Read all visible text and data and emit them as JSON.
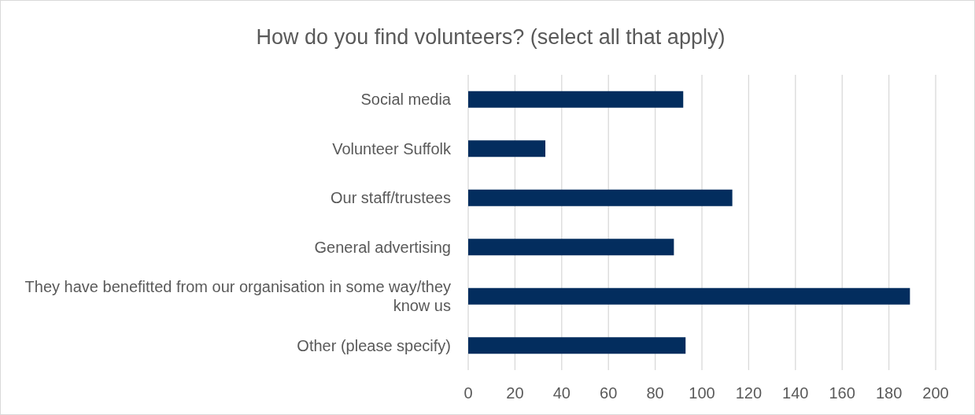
{
  "chart_data": {
    "type": "bar",
    "orientation": "horizontal",
    "title": "How do you find volunteers? (select all that apply)",
    "categories": [
      "Social media",
      "Volunteer Suffolk",
      "Our staff/trustees",
      "General advertising",
      "They have benefitted from our organisation in some way/they know us",
      "Other (please specify)"
    ],
    "values": [
      92,
      33,
      113,
      88,
      189,
      93
    ],
    "color": "#032d5e",
    "xlim": [
      0,
      200
    ],
    "xticks": [
      0,
      20,
      40,
      60,
      80,
      100,
      120,
      140,
      160,
      180,
      200
    ],
    "grid": "x"
  }
}
